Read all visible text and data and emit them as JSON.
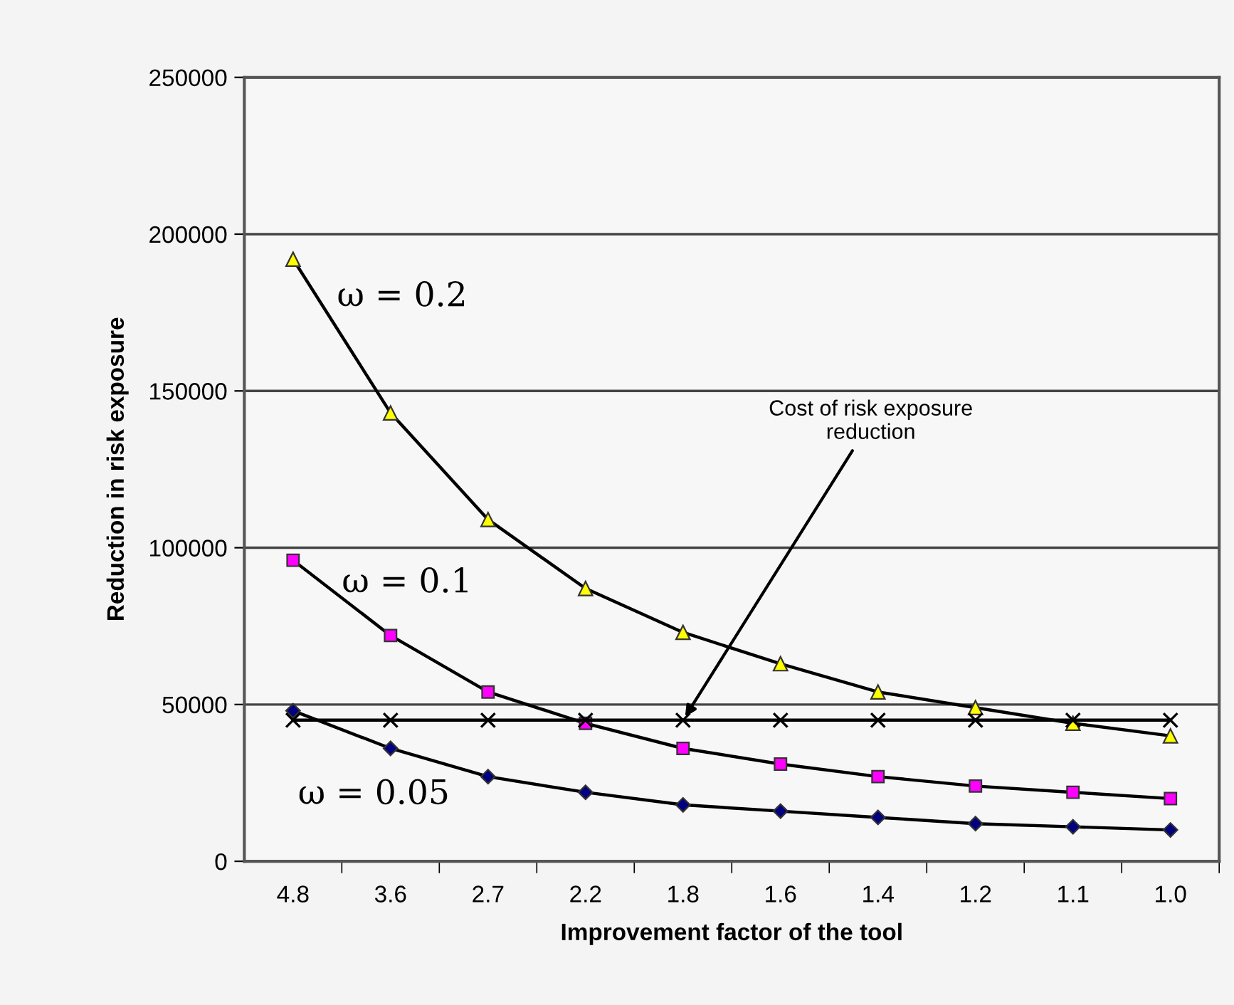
{
  "chart_data": {
    "type": "line",
    "xlabel": "Improvement factor of the tool",
    "ylabel": "Reduction in risk exposure",
    "categories": [
      "4.8",
      "3.6",
      "2.7",
      "2.2",
      "1.8",
      "1.6",
      "1.4",
      "1.2",
      "1.1",
      "1.0"
    ],
    "series": [
      {
        "name": "ω = 0.2",
        "color": "#ffff00",
        "marker": "triangle",
        "values": [
          192000,
          143000,
          109000,
          87000,
          73000,
          63000,
          54000,
          49000,
          44000,
          40000
        ]
      },
      {
        "name": "ω = 0.1",
        "color": "#ff00ff",
        "marker": "square",
        "values": [
          96000,
          72000,
          54000,
          44000,
          36000,
          31000,
          27000,
          24000,
          22000,
          20000
        ]
      },
      {
        "name": "ω = 0.05",
        "color": "#000080",
        "marker": "diamond",
        "values": [
          48000,
          36000,
          27000,
          22000,
          18000,
          16000,
          14000,
          12000,
          11000,
          10000
        ]
      },
      {
        "color": "#000000",
        "marker": "cross",
        "values": [
          45000,
          45000,
          45000,
          45000,
          45000,
          45000,
          45000,
          45000,
          45000,
          45000
        ]
      }
    ],
    "annotations": [
      {
        "text": "Cost of risk exposure reduction",
        "x": "1.8",
        "y": 45000
      }
    ],
    "ylim": [
      0,
      250000
    ],
    "yticks": [
      0,
      50000,
      100000,
      150000,
      200000,
      250000
    ],
    "grid": "y",
    "legend": false
  }
}
